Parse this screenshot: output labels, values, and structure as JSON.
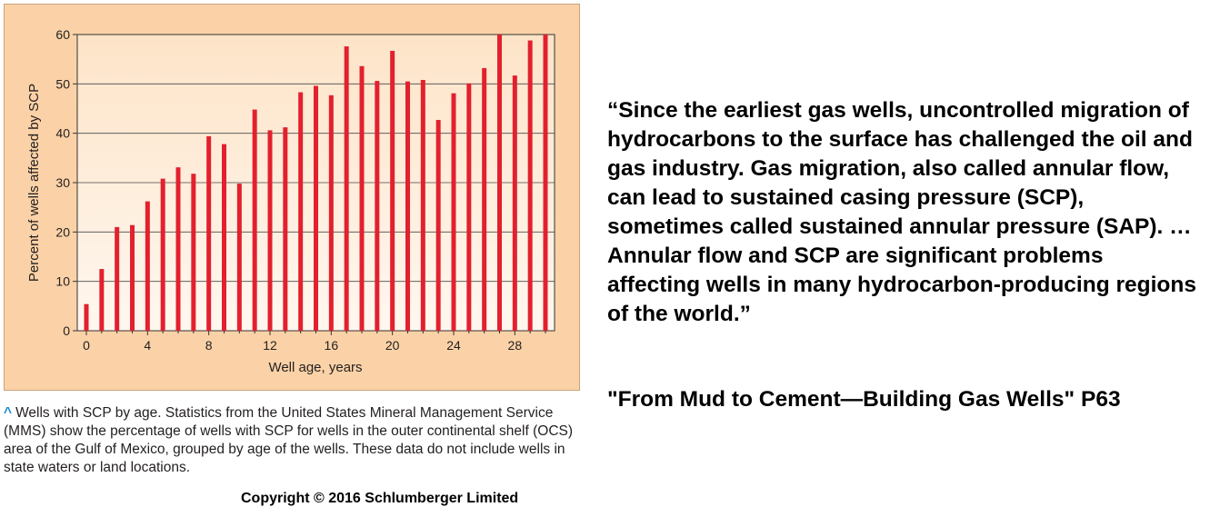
{
  "chart_data": {
    "type": "bar",
    "xlabel": "Well age, years",
    "ylabel": "Percent of wells affected by SCP",
    "ylim": [
      0,
      60
    ],
    "xlim": [
      0,
      30
    ],
    "yticks": [
      "0",
      "10",
      "20",
      "30",
      "40",
      "50",
      "60"
    ],
    "xticks": [
      "0",
      "4",
      "8",
      "12",
      "16",
      "20",
      "24",
      "28"
    ],
    "grid": "horizontal",
    "bar_color": "#e3202e",
    "x": [
      0,
      1,
      2,
      3,
      4,
      5,
      6,
      7,
      8,
      9,
      10,
      11,
      12,
      13,
      14,
      15,
      16,
      17,
      18,
      19,
      20,
      21,
      22,
      23,
      24,
      25,
      26,
      27,
      28,
      29,
      30
    ],
    "values": [
      5.4,
      12.5,
      21,
      21.4,
      26.2,
      30.8,
      33.1,
      31.8,
      39.4,
      37.8,
      29.8,
      44.8,
      40.6,
      41.2,
      48.3,
      49.6,
      47.7,
      57.6,
      53.6,
      50.6,
      56.7,
      50.5,
      50.8,
      42.7,
      48.1,
      50.1,
      53.2,
      60,
      51.7,
      58.8,
      60
    ]
  },
  "caption": {
    "caret": "^",
    "text": "Wells with SCP by age. Statistics from the United States Mineral Management Service (MMS) show the percentage of wells with SCP for wells in the outer continental shelf (OCS) area of the Gulf of Mexico, grouped by age of the wells. These data do not include wells in state waters or land locations."
  },
  "copyright": "Copyright © 2016 Schlumberger Limited",
  "quote": "“Since the earliest gas wells, uncontrolled migration of hydrocarbons to the surface has challenged the oil and gas industry. Gas migration, also called annular flow, can lead to sustained casing pressure (SCP), sometimes called sustained annular pressure (SAP). … Annular flow and SCP are significant problems affecting wells in many hydrocarbon-producing regions of the world.”",
  "source": "\"From Mud to Cement—Building Gas Wells\" P63"
}
